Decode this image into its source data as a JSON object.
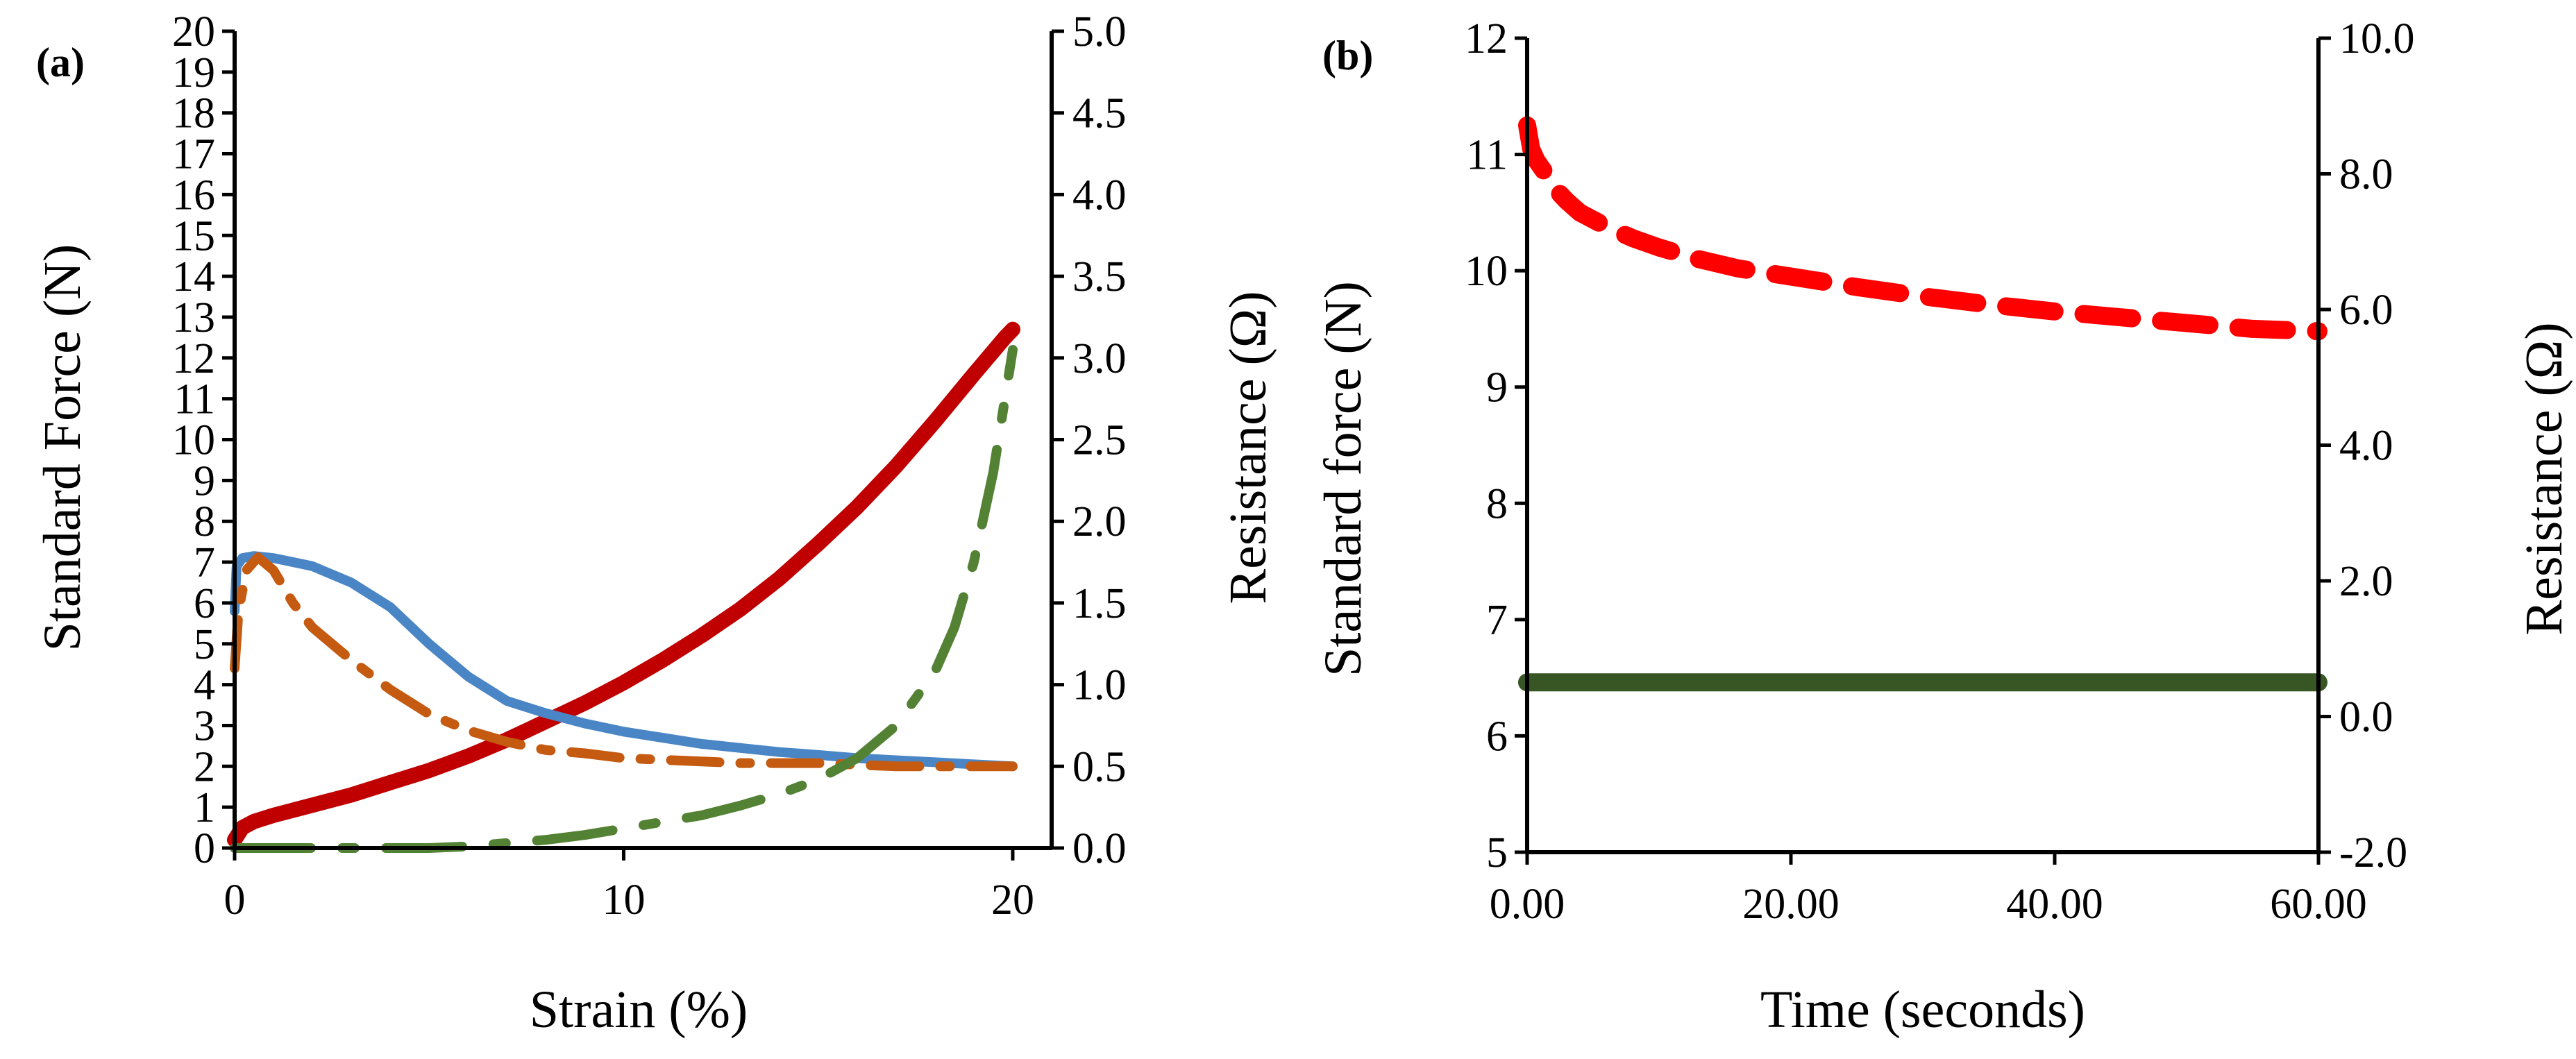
{
  "panels": {
    "a": {
      "label": "(a)"
    },
    "b": {
      "label": "(b)"
    }
  },
  "chart_data": [
    {
      "type": "line",
      "panel": "a",
      "xlabel": "Strain (%)",
      "ylabel": "Standard Force (N)",
      "y2label": "Resistance (Ω)",
      "xlim": [
        0,
        21
      ],
      "ylim": [
        0,
        20
      ],
      "y2lim": [
        0,
        5
      ],
      "xticks": [
        "0",
        "10",
        "20"
      ],
      "yticks": [
        "0",
        "1",
        "2",
        "3",
        "4",
        "5",
        "6",
        "7",
        "8",
        "9",
        "10",
        "11",
        "12",
        "13",
        "14",
        "15",
        "16",
        "17",
        "18",
        "19",
        "20"
      ],
      "y2ticks": [
        "0.0",
        "0.5",
        "1.0",
        "1.5",
        "2.0",
        "2.5",
        "3.0",
        "3.5",
        "4.0",
        "4.5",
        "5.0"
      ],
      "grid": false,
      "series": [
        {
          "axis": "y",
          "color": "#c00000",
          "style": "solid",
          "x": [
            0,
            0.2,
            0.5,
            1,
            2,
            3,
            4,
            5,
            6,
            7,
            8,
            9,
            10,
            11,
            12,
            13,
            14,
            15,
            16,
            17,
            18,
            19,
            19.8,
            20
          ],
          "y": [
            0.2,
            0.5,
            0.65,
            0.8,
            1.05,
            1.3,
            1.6,
            1.9,
            2.25,
            2.65,
            3.1,
            3.55,
            4.05,
            4.6,
            5.2,
            5.85,
            6.6,
            7.45,
            8.35,
            9.35,
            10.45,
            11.6,
            12.5,
            12.7
          ]
        },
        {
          "axis": "y",
          "color": "#4a86c5",
          "style": "solid",
          "x": [
            0,
            0.05,
            0.2,
            0.5,
            1,
            1.5,
            2,
            3,
            4,
            5,
            6,
            7,
            8,
            9,
            10,
            11,
            12,
            13,
            14,
            15,
            16,
            17,
            18,
            19,
            20
          ],
          "y": [
            5.8,
            6.9,
            7.1,
            7.15,
            7.1,
            7.0,
            6.9,
            6.5,
            5.9,
            5.0,
            4.2,
            3.6,
            3.3,
            3.05,
            2.85,
            2.7,
            2.55,
            2.45,
            2.35,
            2.28,
            2.2,
            2.15,
            2.1,
            2.05,
            2.0
          ]
        },
        {
          "axis": "y2",
          "color": "#c55a11",
          "style": "dash-dot",
          "x": [
            0,
            0.1,
            0.3,
            0.6,
            1,
            1.5,
            2,
            3,
            4,
            5,
            6,
            7,
            8,
            9,
            10,
            11,
            12,
            13,
            14,
            15,
            16,
            17,
            18,
            19,
            20
          ],
          "y": [
            1.1,
            1.45,
            1.7,
            1.78,
            1.7,
            1.5,
            1.35,
            1.15,
            0.97,
            0.82,
            0.72,
            0.65,
            0.6,
            0.58,
            0.55,
            0.54,
            0.53,
            0.52,
            0.52,
            0.52,
            0.51,
            0.5,
            0.5,
            0.5,
            0.5
          ]
        },
        {
          "axis": "y2",
          "color": "#548235",
          "style": "long-dash-dot",
          "x": [
            0,
            2,
            4,
            5,
            6,
            7,
            8,
            9,
            10,
            11,
            12,
            13,
            14,
            15,
            16,
            17,
            18,
            18.5,
            19,
            19.5,
            19.8,
            20
          ],
          "y": [
            0,
            0,
            0,
            0,
            0.01,
            0.03,
            0.05,
            0.08,
            0.12,
            0.16,
            0.2,
            0.26,
            0.33,
            0.42,
            0.55,
            0.75,
            1.08,
            1.35,
            1.75,
            2.3,
            2.75,
            3.05
          ]
        }
      ]
    },
    {
      "type": "line",
      "panel": "b",
      "xlabel": "Time (seconds)",
      "ylabel": "Standard force (N)",
      "y2label": "Resistance (Ω)",
      "xlim": [
        0,
        60
      ],
      "ylim": [
        5,
        12
      ],
      "y2lim": [
        -2,
        10
      ],
      "xticks": [
        "0.00",
        "20.00",
        "40.00",
        "60.00"
      ],
      "yticks": [
        "5",
        "6",
        "7",
        "8",
        "9",
        "10",
        "11",
        "12"
      ],
      "y2ticks": [
        "-2.0",
        "0.0",
        "2.0",
        "4.0",
        "6.0",
        "8.0",
        "10.0"
      ],
      "grid": false,
      "series": [
        {
          "axis": "y",
          "color": "#ff0000",
          "style": "dashed",
          "x": [
            0,
            0.3,
            0.7,
            1,
            1.5,
            2,
            3,
            4,
            6,
            8,
            10,
            13,
            16,
            20,
            25,
            30,
            35,
            40,
            45,
            50,
            55,
            60
          ],
          "y": [
            11.25,
            11.05,
            10.95,
            10.9,
            10.82,
            10.72,
            10.6,
            10.5,
            10.38,
            10.28,
            10.2,
            10.1,
            10.02,
            9.95,
            9.86,
            9.78,
            9.71,
            9.65,
            9.6,
            9.55,
            9.5,
            9.48
          ]
        },
        {
          "axis": "y",
          "color": "#375623",
          "style": "solid",
          "x": [
            0,
            60
          ],
          "y": [
            6.46,
            6.46
          ]
        }
      ]
    }
  ]
}
